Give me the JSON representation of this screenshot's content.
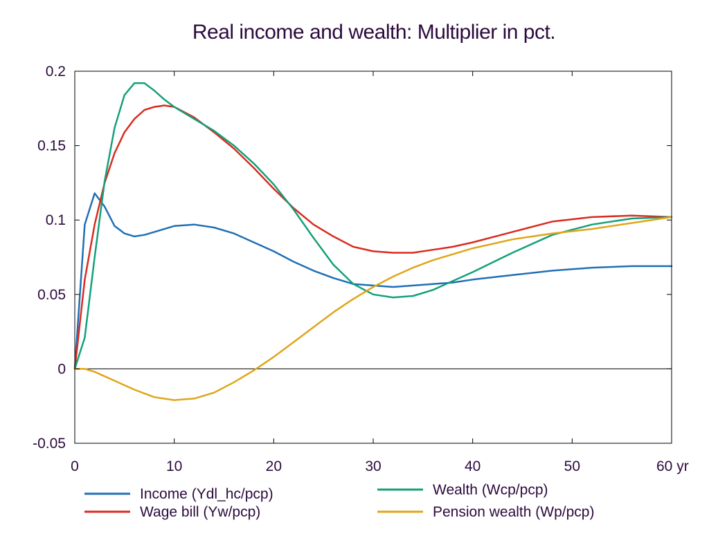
{
  "chart_data": {
    "type": "line",
    "title": "Real income and wealth: Multiplier in pct.",
    "x_unit_label": "yr",
    "xlim": [
      0,
      60
    ],
    "ylim": [
      -0.05,
      0.2
    ],
    "x_ticks": [
      0,
      10,
      20,
      30,
      40,
      50,
      60
    ],
    "y_ticks": [
      -0.05,
      0,
      0.05,
      0.1,
      0.15,
      0.2
    ],
    "y_tick_labels": [
      "-0.05",
      "0",
      "0.05",
      "0.1",
      "0.15",
      "0.2"
    ],
    "x_tick_labels": [
      "0",
      "10",
      "20",
      "30",
      "40",
      "50",
      "60 yr"
    ],
    "zero_line": true,
    "legend_position": "bottom",
    "series": [
      {
        "name": "Income (Ydl_hc/pcp)",
        "color": "#1f6fb5",
        "x": [
          0,
          1,
          2,
          3,
          4,
          5,
          6,
          7,
          8,
          10,
          12,
          14,
          16,
          18,
          20,
          22,
          24,
          26,
          28,
          30,
          32,
          34,
          36,
          38,
          40,
          44,
          48,
          52,
          56,
          60
        ],
        "y": [
          0,
          0.097,
          0.118,
          0.109,
          0.096,
          0.091,
          0.089,
          0.09,
          0.092,
          0.096,
          0.097,
          0.095,
          0.091,
          0.085,
          0.079,
          0.072,
          0.066,
          0.061,
          0.057,
          0.056,
          0.055,
          0.056,
          0.057,
          0.058,
          0.06,
          0.063,
          0.066,
          0.068,
          0.069,
          0.069
        ]
      },
      {
        "name": "Wage bill (Yw/pcp)",
        "color": "#d92b1f",
        "x": [
          0,
          1,
          2,
          3,
          4,
          5,
          6,
          7,
          8,
          9,
          10,
          12,
          14,
          16,
          18,
          20,
          22,
          24,
          26,
          28,
          30,
          32,
          34,
          36,
          38,
          40,
          44,
          48,
          52,
          56,
          60
        ],
        "y": [
          0,
          0.06,
          0.097,
          0.125,
          0.145,
          0.159,
          0.168,
          0.174,
          0.176,
          0.177,
          0.176,
          0.169,
          0.159,
          0.148,
          0.135,
          0.121,
          0.108,
          0.097,
          0.089,
          0.082,
          0.079,
          0.078,
          0.078,
          0.08,
          0.082,
          0.085,
          0.092,
          0.099,
          0.102,
          0.103,
          0.102
        ]
      },
      {
        "name": "Wealth (Wcp/pcp)",
        "color": "#12a079",
        "x": [
          0,
          1,
          2,
          3,
          4,
          5,
          6,
          7,
          8,
          9,
          10,
          12,
          14,
          16,
          18,
          20,
          22,
          24,
          26,
          28,
          30,
          32,
          34,
          36,
          38,
          40,
          44,
          48,
          52,
          56,
          60
        ],
        "y": [
          0,
          0.021,
          0.075,
          0.126,
          0.162,
          0.184,
          0.192,
          0.192,
          0.187,
          0.181,
          0.176,
          0.168,
          0.16,
          0.15,
          0.138,
          0.124,
          0.107,
          0.088,
          0.07,
          0.057,
          0.05,
          0.048,
          0.049,
          0.053,
          0.059,
          0.065,
          0.078,
          0.09,
          0.097,
          0.101,
          0.102
        ]
      },
      {
        "name": "Pension wealth (Wp/pcp)",
        "color": "#e0a518",
        "x": [
          0,
          1,
          2,
          4,
          6,
          8,
          10,
          12,
          14,
          16,
          18,
          20,
          22,
          24,
          26,
          28,
          30,
          32,
          34,
          36,
          38,
          40,
          44,
          48,
          52,
          56,
          60
        ],
        "y": [
          0,
          0,
          -0.002,
          -0.008,
          -0.014,
          -0.019,
          -0.021,
          -0.02,
          -0.016,
          -0.009,
          -0.001,
          0.008,
          0.018,
          0.028,
          0.038,
          0.047,
          0.055,
          0.062,
          0.068,
          0.073,
          0.077,
          0.081,
          0.087,
          0.091,
          0.094,
          0.098,
          0.102
        ]
      }
    ]
  }
}
